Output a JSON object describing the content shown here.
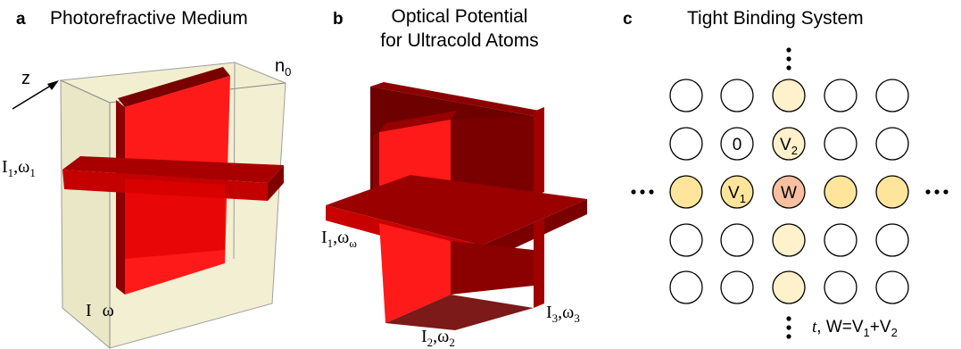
{
  "panels": {
    "a": {
      "letter": "a",
      "title": "Photorefractive Medium",
      "axis_z": "z",
      "n0": {
        "base": "n",
        "sub": "0"
      },
      "beam1": {
        "I": "I",
        "I_sub": "1",
        "sep": ",",
        "w": "ω",
        "w_sub": "1"
      },
      "beam_bottom": {
        "I": "I",
        "w": "ω"
      }
    },
    "b": {
      "letter": "b",
      "title_line1": "Optical Potential",
      "title_line2": "for Ultracold Atoms",
      "beam1": {
        "I": "I",
        "I_sub": "1",
        "sep": ",",
        "w": "ω",
        "w_sub": "ω"
      },
      "beam2": {
        "I": "I",
        "I_sub": "2",
        "sep": ",",
        "w": "ω",
        "w_sub": "2"
      },
      "beam3": {
        "I": "I",
        "I_sub": "3",
        "sep": ",",
        "w": "ω",
        "w_sub": "3"
      }
    },
    "c": {
      "letter": "c",
      "title": "Tight Binding System",
      "site_labels": {
        "zero": "0",
        "v1": {
          "base": "V",
          "sub": "1"
        },
        "v2": {
          "base": "V",
          "sub": "2"
        },
        "w": "W"
      },
      "caption": {
        "t": "t",
        "comma": ",",
        "w_eq": " W=V",
        "s1": "1",
        "plus": "+V",
        "s2": "2"
      }
    }
  },
  "colors": {
    "beam_front": "#ff1a1a",
    "beam_dark": "#8b0000",
    "beam_mid": "#c20000",
    "medium_fill": "#efecc6",
    "site_white": "#ffffff",
    "site_pale": "#fff1cc",
    "site_yellow": "#ffe59c",
    "site_orange": "#f8c0a0"
  }
}
